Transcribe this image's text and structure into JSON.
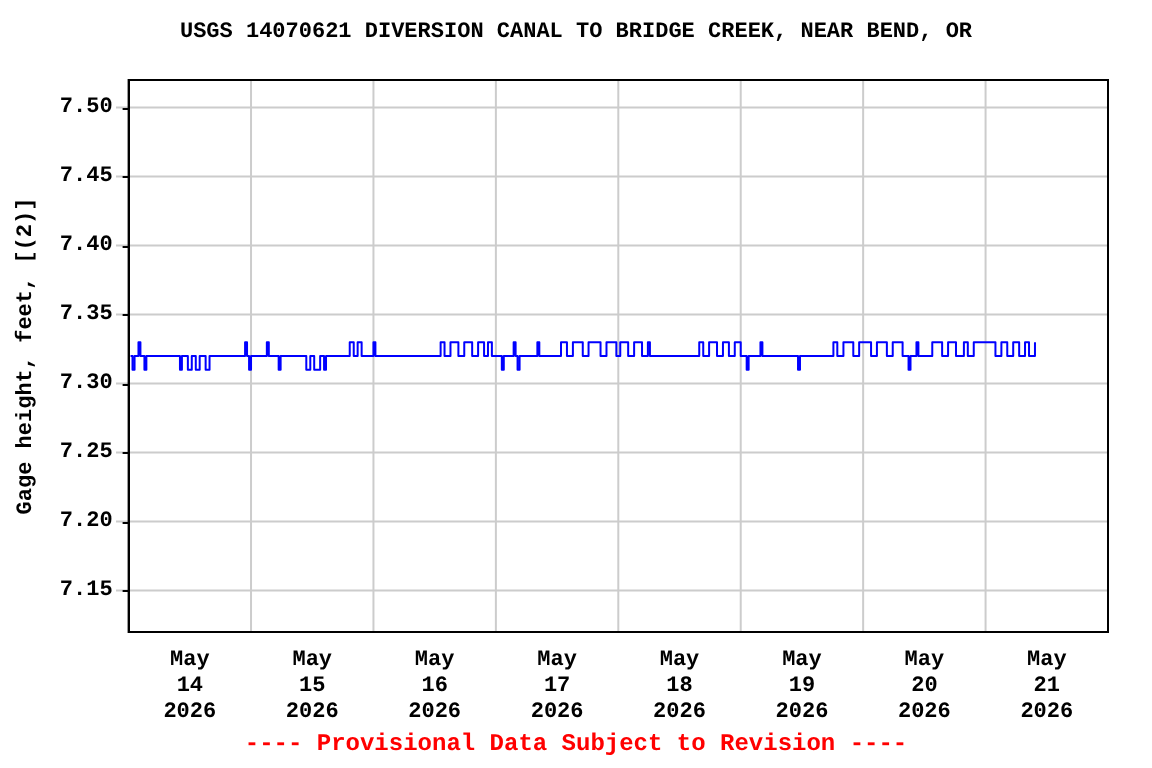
{
  "chart_data": {
    "type": "step",
    "title": "USGS 14070621 DIVERSION CANAL TO BRIDGE CREEK, NEAR BEND, OR",
    "ylabel": "Gage height, feet, [(2)]",
    "annotations": [
      "---- Provisional Data Subject to Revision ----"
    ],
    "x": [
      "2026-05-14T00:23",
      "2026-05-14T00:46",
      "2026-05-14T01:10",
      "2026-05-14T01:56",
      "2026-05-14T02:19",
      "2026-05-14T03:06",
      "2026-05-14T03:29",
      "2026-05-14T10:04",
      "2026-05-14T10:27",
      "2026-05-14T11:37",
      "2026-05-14T12:23",
      "2026-05-14T13:10",
      "2026-05-14T13:56",
      "2026-05-14T15:06",
      "2026-05-14T15:52",
      "2026-05-14T22:50",
      "2026-05-14T23:13",
      "2026-05-14T23:37",
      "2026-05-15T00:00",
      "2026-05-15T03:06",
      "2026-05-15T03:29",
      "2026-05-15T05:25",
      "2026-05-15T05:48",
      "2026-05-15T10:50",
      "2026-05-15T11:37",
      "2026-05-15T12:23",
      "2026-05-15T13:33",
      "2026-05-15T14:19",
      "2026-05-15T14:42",
      "2026-05-15T19:21",
      "2026-05-15T20:08",
      "2026-05-15T20:54",
      "2026-05-15T21:41",
      "2026-05-16T00:00",
      "2026-05-16T00:23",
      "2026-05-16T13:10",
      "2026-05-16T13:56",
      "2026-05-16T15:06",
      "2026-05-16T16:39",
      "2026-05-16T17:48",
      "2026-05-16T19:21",
      "2026-05-16T20:31",
      "2026-05-16T21:41",
      "2026-05-16T22:27",
      "2026-05-16T23:13",
      "2026-05-17T01:10",
      "2026-05-17T01:33",
      "2026-05-17T03:29",
      "2026-05-17T03:52",
      "2026-05-17T04:15",
      "2026-05-17T04:39",
      "2026-05-17T08:08",
      "2026-05-17T08:31",
      "2026-05-17T12:46",
      "2026-05-17T13:56",
      "2026-05-17T15:06",
      "2026-05-17T17:02",
      "2026-05-17T18:10",
      "2026-05-17T20:31",
      "2026-05-17T21:41",
      "2026-05-17T23:37",
      "2026-05-18T00:23",
      "2026-05-18T01:56",
      "2026-05-18T03:06",
      "2026-05-18T04:39",
      "2026-05-18T05:48",
      "2026-05-18T06:12",
      "2026-05-18T15:52",
      "2026-05-18T16:39",
      "2026-05-18T17:48",
      "2026-05-18T19:21",
      "2026-05-18T20:31",
      "2026-05-18T21:41",
      "2026-05-18T22:50",
      "2026-05-19T00:00",
      "2026-05-19T01:10",
      "2026-05-19T01:33",
      "2026-05-19T03:52",
      "2026-05-19T04:15",
      "2026-05-19T11:14",
      "2026-05-19T11:37",
      "2026-05-19T18:10",
      "2026-05-19T18:56",
      "2026-05-19T20:08",
      "2026-05-19T22:04",
      "2026-05-19T23:13",
      "2026-05-20T01:33",
      "2026-05-20T02:42",
      "2026-05-20T04:39",
      "2026-05-20T05:48",
      "2026-05-20T07:44",
      "2026-05-20T08:54",
      "2026-05-20T09:17",
      "2026-05-20T10:27",
      "2026-05-20T10:50",
      "2026-05-20T13:33",
      "2026-05-20T15:29",
      "2026-05-20T16:39",
      "2026-05-20T18:12",
      "2026-05-20T19:45",
      "2026-05-20T20:31",
      "2026-05-20T21:41",
      "2026-05-21T01:56",
      "2026-05-21T03:06",
      "2026-05-21T04:15",
      "2026-05-21T05:25",
      "2026-05-21T06:35",
      "2026-05-21T07:44",
      "2026-05-21T08:31",
      "2026-05-21T09:41"
    ],
    "values": [
      7.32,
      7.31,
      7.32,
      7.33,
      7.32,
      7.31,
      7.32,
      7.31,
      7.32,
      7.31,
      7.32,
      7.31,
      7.32,
      7.31,
      7.32,
      7.33,
      7.32,
      7.31,
      7.32,
      7.33,
      7.32,
      7.31,
      7.32,
      7.31,
      7.32,
      7.31,
      7.32,
      7.31,
      7.32,
      7.33,
      7.32,
      7.33,
      7.32,
      7.33,
      7.32,
      7.33,
      7.32,
      7.33,
      7.32,
      7.33,
      7.32,
      7.33,
      7.32,
      7.33,
      7.32,
      7.31,
      7.32,
      7.33,
      7.32,
      7.31,
      7.32,
      7.33,
      7.32,
      7.33,
      7.32,
      7.33,
      7.32,
      7.33,
      7.32,
      7.33,
      7.32,
      7.33,
      7.32,
      7.33,
      7.32,
      7.33,
      7.32,
      7.33,
      7.32,
      7.33,
      7.32,
      7.33,
      7.32,
      7.33,
      7.32,
      7.31,
      7.32,
      7.33,
      7.32,
      7.31,
      7.32,
      7.33,
      7.32,
      7.33,
      7.32,
      7.33,
      7.32,
      7.33,
      7.32,
      7.33,
      7.32,
      7.31,
      7.32,
      7.33,
      7.32,
      7.33,
      7.32,
      7.33,
      7.32,
      7.33,
      7.32,
      7.33,
      7.32,
      7.33,
      7.32,
      7.33,
      7.32,
      7.33,
      7.32,
      7.33
    ],
    "color": "#0000ff",
    "xlim": [
      "2026-05-14T00:00",
      "2026-05-22T00:00"
    ],
    "xticks": [
      {
        "value": "2026-05-14T12:00",
        "label": "May\n14\n2026"
      },
      {
        "value": "2026-05-15T00:00",
        "label": null
      },
      {
        "value": "2026-05-15T12:00",
        "label": "May\n15\n2026"
      },
      {
        "value": "2026-05-16T00:00",
        "label": null
      },
      {
        "value": "2026-05-16T12:00",
        "label": "May\n16\n2026"
      },
      {
        "value": "2026-05-17T00:00",
        "label": null
      },
      {
        "value": "2026-05-17T12:00",
        "label": "May\n17\n2026"
      },
      {
        "value": "2026-05-18T00:00",
        "label": null
      },
      {
        "value": "2026-05-18T12:00",
        "label": "May\n18\n2026"
      },
      {
        "value": "2026-05-19T00:00",
        "label": null
      },
      {
        "value": "2026-05-19T12:00",
        "label": "May\n19\n2026"
      },
      {
        "value": "2026-05-20T00:00",
        "label": null
      },
      {
        "value": "2026-05-20T12:00",
        "label": "May\n20\n2026"
      },
      {
        "value": "2026-05-21T00:00",
        "label": null
      },
      {
        "value": "2026-05-21T12:00",
        "label": "May\n21\n2026"
      }
    ],
    "ylim": [
      7.12,
      7.52
    ],
    "yticks": [
      {
        "value": 7.15,
        "label": "7.15"
      },
      {
        "value": 7.2,
        "label": "7.20"
      },
      {
        "value": 7.25,
        "label": "7.25"
      },
      {
        "value": 7.3,
        "label": "7.30"
      },
      {
        "value": 7.35,
        "label": "7.35"
      },
      {
        "value": 7.4,
        "label": "7.40"
      },
      {
        "value": 7.45,
        "label": "7.45"
      },
      {
        "value": 7.5,
        "label": "7.50"
      }
    ],
    "grid": true,
    "marker": "none",
    "line_style": "solid"
  }
}
